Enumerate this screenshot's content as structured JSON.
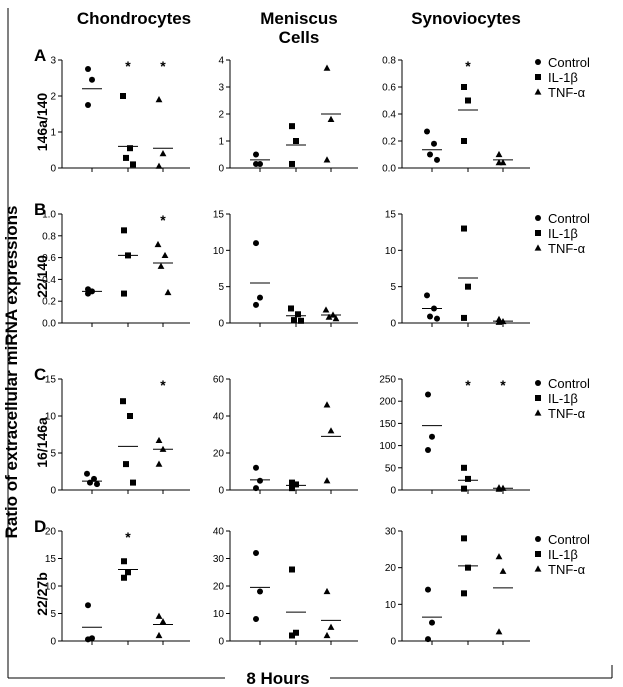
{
  "figure": {
    "y_axis_title": "Ratio of extracellular miRNA expressions",
    "x_axis_title": "8 Hours",
    "column_titles": [
      [
        "Chondrocytes"
      ],
      [
        "Meniscus",
        "Cells"
      ],
      [
        "Synoviocytes"
      ]
    ],
    "legend": [
      {
        "label": "Control",
        "marker": "circle"
      },
      {
        "label": "IL-1β",
        "marker": "square"
      },
      {
        "label": "TNF-α",
        "marker": "triangle"
      }
    ]
  },
  "chart_data": [
    {
      "panel": "A",
      "row_label": "146a/140",
      "type": "scatter",
      "groups": [
        "Control",
        "IL-1β",
        "TNF-α"
      ],
      "plots": [
        {
          "ylim": [
            0,
            3
          ],
          "ticks": [
            0,
            1,
            2,
            3
          ],
          "series": [
            {
              "name": "Control",
              "values": [
                2.75,
                2.45,
                1.75
              ],
              "mean": 2.2
            },
            {
              "name": "IL-1β",
              "values": [
                2.0,
                0.55,
                0.28,
                0.1
              ],
              "mean": 0.6
            },
            {
              "name": "TNF-α",
              "values": [
                1.9,
                0.4,
                0.05
              ],
              "mean": 0.55
            }
          ],
          "significant": [
            "IL-1β",
            "TNF-α"
          ]
        },
        {
          "ylim": [
            0,
            4
          ],
          "ticks": [
            0,
            1,
            2,
            3,
            4
          ],
          "series": [
            {
              "name": "Control",
              "values": [
                0.5,
                0.15,
                0.15
              ],
              "mean": 0.3
            },
            {
              "name": "IL-1β",
              "values": [
                1.55,
                1.0,
                0.15
              ],
              "mean": 0.85
            },
            {
              "name": "TNF-α",
              "values": [
                3.7,
                1.8,
                0.3
              ],
              "mean": 2.0
            }
          ],
          "significant": []
        },
        {
          "ylim": [
            0,
            0.8
          ],
          "ticks": [
            0.0,
            0.2,
            0.4,
            0.6,
            0.8
          ],
          "series": [
            {
              "name": "Control",
              "values": [
                0.27,
                0.18,
                0.1,
                0.06
              ],
              "mean": 0.135
            },
            {
              "name": "IL-1β",
              "values": [
                0.6,
                0.5,
                0.2
              ],
              "mean": 0.43
            },
            {
              "name": "TNF-α",
              "values": [
                0.1,
                0.04,
                0.04
              ],
              "mean": 0.06
            }
          ],
          "significant": [
            "IL-1β"
          ]
        }
      ]
    },
    {
      "panel": "B",
      "row_label": "22/140",
      "type": "scatter",
      "groups": [
        "Control",
        "IL-1β",
        "TNF-α"
      ],
      "plots": [
        {
          "ylim": [
            0,
            1.0
          ],
          "ticks": [
            0.0,
            0.2,
            0.4,
            0.6,
            0.8,
            1.0
          ],
          "series": [
            {
              "name": "Control",
              "values": [
                0.31,
                0.29,
                0.27
              ],
              "mean": 0.29
            },
            {
              "name": "IL-1β",
              "values": [
                0.85,
                0.62,
                0.27
              ],
              "mean": 0.62
            },
            {
              "name": "TNF-α",
              "values": [
                0.72,
                0.62,
                0.52,
                0.28
              ],
              "mean": 0.55
            }
          ],
          "significant": [
            "TNF-α"
          ]
        },
        {
          "ylim": [
            0,
            15
          ],
          "ticks": [
            0,
            5,
            10,
            15
          ],
          "series": [
            {
              "name": "Control",
              "values": [
                11,
                3.5,
                2.5
              ],
              "mean": 5.5
            },
            {
              "name": "IL-1β",
              "values": [
                2.0,
                1.2,
                0.4,
                0.3
              ],
              "mean": 1.0
            },
            {
              "name": "TNF-α",
              "values": [
                1.8,
                1.1,
                0.8,
                0.6
              ],
              "mean": 1.1
            }
          ],
          "significant": []
        },
        {
          "ylim": [
            0,
            15
          ],
          "ticks": [
            0,
            5,
            10,
            15
          ],
          "series": [
            {
              "name": "Control",
              "values": [
                3.8,
                2.0,
                0.9,
                0.6
              ],
              "mean": 2.0
            },
            {
              "name": "IL-1β",
              "values": [
                13,
                5.0,
                0.7
              ],
              "mean": 6.2
            },
            {
              "name": "TNF-α",
              "values": [
                0.5,
                0.2,
                0.1
              ],
              "mean": 0.25
            }
          ],
          "significant": []
        }
      ]
    },
    {
      "panel": "C",
      "row_label": "16/146a",
      "type": "scatter",
      "groups": [
        "Control",
        "IL-1β",
        "TNF-α"
      ],
      "plots": [
        {
          "ylim": [
            0,
            15
          ],
          "ticks": [
            0,
            5,
            10,
            15
          ],
          "series": [
            {
              "name": "Control",
              "values": [
                2.2,
                1.5,
                1.0,
                0.8
              ],
              "mean": 1.2
            },
            {
              "name": "IL-1β",
              "values": [
                12,
                10,
                3.5,
                1.0
              ],
              "mean": 5.9
            },
            {
              "name": "TNF-α",
              "values": [
                6.7,
                5.5,
                3.5
              ],
              "mean": 5.5
            }
          ],
          "significant": [
            "TNF-α"
          ]
        },
        {
          "ylim": [
            0,
            60
          ],
          "ticks": [
            0,
            20,
            40,
            60
          ],
          "series": [
            {
              "name": "Control",
              "values": [
                12,
                5,
                1
              ],
              "mean": 5.5
            },
            {
              "name": "IL-1β",
              "values": [
                4,
                3,
                1
              ],
              "mean": 2.5
            },
            {
              "name": "TNF-α",
              "values": [
                46,
                32,
                5
              ],
              "mean": 29
            }
          ],
          "significant": []
        },
        {
          "ylim": [
            0,
            250
          ],
          "ticks": [
            0,
            50,
            100,
            150,
            200,
            250
          ],
          "series": [
            {
              "name": "Control",
              "values": [
                215,
                120,
                90
              ],
              "mean": 145
            },
            {
              "name": "IL-1β",
              "values": [
                50,
                25,
                3
              ],
              "mean": 22
            },
            {
              "name": "TNF-α",
              "values": [
                5,
                4,
                2
              ],
              "mean": 4
            }
          ],
          "significant": [
            "IL-1β",
            "TNF-α"
          ]
        }
      ]
    },
    {
      "panel": "D",
      "row_label": "22/27b",
      "type": "scatter",
      "groups": [
        "Control",
        "IL-1β",
        "TNF-α"
      ],
      "plots": [
        {
          "ylim": [
            0,
            20
          ],
          "ticks": [
            0,
            5,
            10,
            15,
            20
          ],
          "series": [
            {
              "name": "Control",
              "values": [
                6.5,
                0.5,
                0.3
              ],
              "mean": 2.5
            },
            {
              "name": "IL-1β",
              "values": [
                14.5,
                12.5,
                11.5
              ],
              "mean": 13
            },
            {
              "name": "TNF-α",
              "values": [
                4.5,
                3.5,
                1.0
              ],
              "mean": 3.0
            }
          ],
          "significant": [
            "IL-1β"
          ]
        },
        {
          "ylim": [
            0,
            40
          ],
          "ticks": [
            0,
            10,
            20,
            30,
            40
          ],
          "series": [
            {
              "name": "Control",
              "values": [
                32,
                18,
                8
              ],
              "mean": 19.5
            },
            {
              "name": "IL-1β",
              "values": [
                26,
                3,
                2
              ],
              "mean": 10.5
            },
            {
              "name": "TNF-α",
              "values": [
                18,
                5,
                2
              ],
              "mean": 7.5
            }
          ],
          "significant": []
        },
        {
          "ylim": [
            0,
            30
          ],
          "ticks": [
            0,
            10,
            20,
            30
          ],
          "series": [
            {
              "name": "Control",
              "values": [
                14,
                5,
                0.5
              ],
              "mean": 6.5
            },
            {
              "name": "IL-1β",
              "values": [
                28,
                20,
                13
              ],
              "mean": 20.5
            },
            {
              "name": "TNF-α",
              "values": [
                23,
                19,
                2.5
              ],
              "mean": 14.5
            }
          ],
          "significant": []
        }
      ]
    }
  ]
}
